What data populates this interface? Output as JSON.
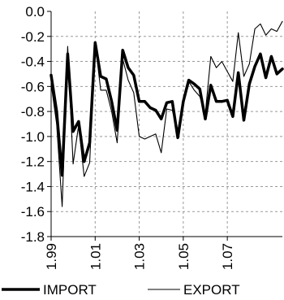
{
  "chart_data": {
    "type": "line",
    "title": "",
    "xlabel": "",
    "ylabel": "",
    "ylim": [
      -1.8,
      0.0
    ],
    "xlim": [
      0,
      42
    ],
    "grid": true,
    "legend": "bottom",
    "y_ticks": [
      "0.0",
      "-0.2",
      "-0.4",
      "-0.6",
      "-0.8",
      "-1.0",
      "-1.2",
      "-1.4",
      "-1.6",
      "-1.8"
    ],
    "x_ticks": [
      {
        "label": "1.99",
        "x": 0
      },
      {
        "label": "1.01",
        "x": 8
      },
      {
        "label": "1.03",
        "x": 16
      },
      {
        "label": "1.05",
        "x": 24
      },
      {
        "label": "1.07",
        "x": 32
      }
    ],
    "series": [
      {
        "name": "IMPORT",
        "color": "#000000",
        "style": "thick",
        "x": [
          0,
          1,
          2,
          3,
          4,
          5,
          6,
          7,
          8,
          9,
          10,
          11,
          12,
          13,
          14,
          15,
          16,
          17,
          18,
          19,
          20,
          21,
          22,
          23,
          24,
          25,
          26,
          27,
          28,
          29,
          30,
          31,
          32,
          33,
          34,
          35,
          36,
          37,
          38,
          39,
          40,
          41,
          42
        ],
        "values": [
          -0.51,
          -0.8,
          -1.31,
          -0.34,
          -0.96,
          -0.88,
          -1.2,
          -1.05,
          -0.25,
          -0.52,
          -0.54,
          -0.72,
          -0.95,
          -0.31,
          -0.45,
          -0.51,
          -0.72,
          -0.72,
          -0.77,
          -0.79,
          -0.86,
          -0.73,
          -0.72,
          -1.01,
          -0.72,
          -0.55,
          -0.58,
          -0.62,
          -0.86,
          -0.59,
          -0.72,
          -0.72,
          -0.71,
          -0.84,
          -0.49,
          -0.87,
          -0.58,
          -0.44,
          -0.34,
          -0.53,
          -0.36,
          -0.5,
          -0.46
        ]
      },
      {
        "name": "EXPORT",
        "color": "#000000",
        "style": "thin",
        "x": [
          0,
          1,
          2,
          3,
          4,
          5,
          6,
          7,
          8,
          9,
          10,
          11,
          12,
          13,
          14,
          15,
          16,
          17,
          18,
          19,
          20,
          21,
          22,
          23,
          24,
          25,
          26,
          27,
          28,
          29,
          30,
          31,
          32,
          33,
          34,
          35,
          36,
          37,
          38,
          39,
          40,
          41,
          42
        ],
        "values": [
          -0.58,
          -0.9,
          -1.56,
          -0.28,
          -1.22,
          -0.91,
          -1.32,
          -1.21,
          -0.25,
          -0.63,
          -0.63,
          -0.8,
          -1.05,
          -0.38,
          -0.55,
          -0.65,
          -1.0,
          -1.02,
          -1.0,
          -0.98,
          -1.13,
          -0.78,
          -0.79,
          -0.95,
          -0.72,
          -0.56,
          -0.63,
          -0.68,
          -0.82,
          -0.36,
          -0.45,
          -0.4,
          -0.48,
          -0.56,
          -0.17,
          -0.52,
          -0.42,
          -0.14,
          -0.1,
          -0.19,
          -0.14,
          -0.16,
          -0.08
        ]
      }
    ]
  }
}
